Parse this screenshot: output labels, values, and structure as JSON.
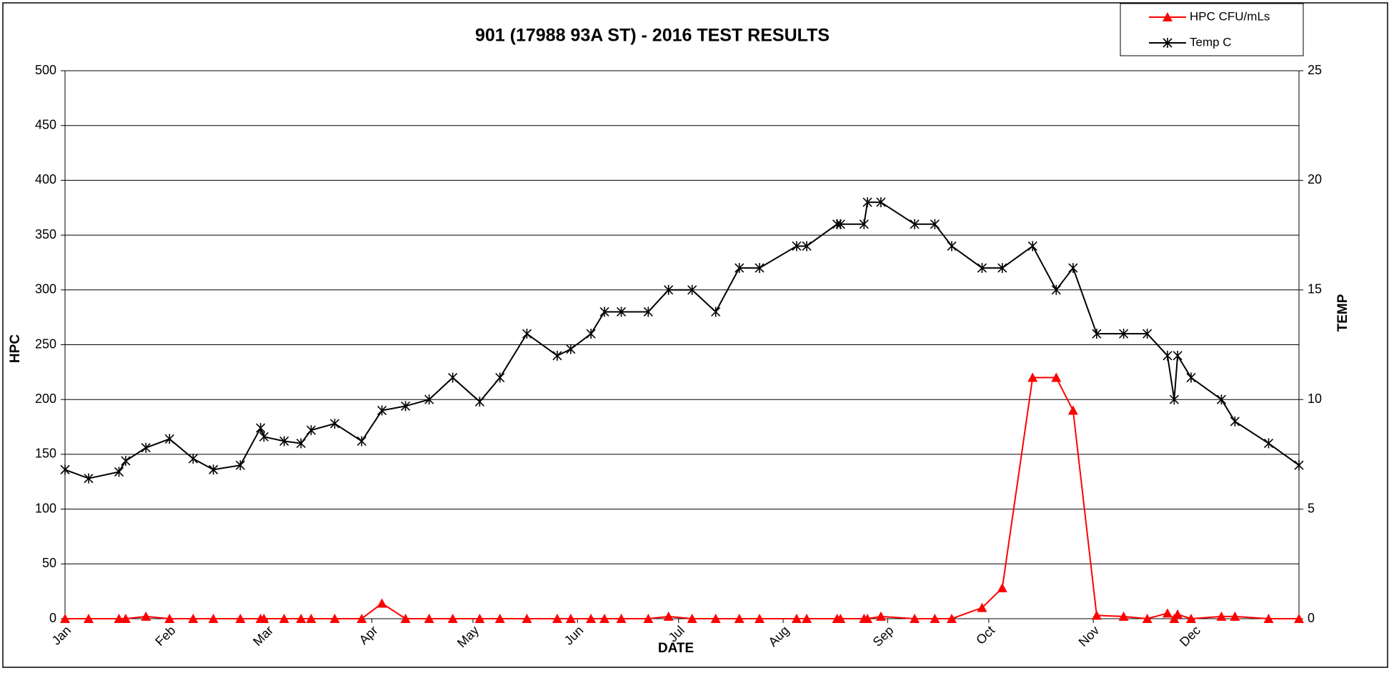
{
  "chart_data": {
    "type": "line",
    "title": "901 (17988 93A ST) - 2016 TEST RESULTS",
    "xlabel": "DATE",
    "ylabel": "HPC",
    "y2label": "TEMP",
    "x": [
      0,
      7,
      16,
      18,
      24,
      31,
      38,
      44,
      52,
      58,
      59,
      65,
      70,
      73,
      80,
      88,
      94,
      101,
      108,
      115,
      123,
      129,
      137,
      146,
      150,
      156,
      160,
      165,
      173,
      179,
      186,
      193,
      200,
      206,
      217,
      220,
      229,
      230,
      237,
      238,
      242,
      252,
      258,
      263,
      272,
      278,
      287,
      294,
      299,
      306,
      314,
      321,
      327,
      329,
      330,
      334,
      343,
      347,
      357,
      366
    ],
    "xlim": [
      0,
      366
    ],
    "xticks": [
      {
        "value": 0,
        "label": "Jan"
      },
      {
        "value": 31,
        "label": "Feb"
      },
      {
        "value": 60,
        "label": "Mar"
      },
      {
        "value": 91,
        "label": "Apr"
      },
      {
        "value": 121,
        "label": "May"
      },
      {
        "value": 152,
        "label": "Jun"
      },
      {
        "value": 182,
        "label": "Jul"
      },
      {
        "value": 213,
        "label": "Aug"
      },
      {
        "value": 244,
        "label": "Sep"
      },
      {
        "value": 274,
        "label": "Oct"
      },
      {
        "value": 305,
        "label": "Nov"
      },
      {
        "value": 335,
        "label": "Dec"
      }
    ],
    "ylim": [
      0,
      500
    ],
    "yticks": [
      0,
      50,
      100,
      150,
      200,
      250,
      300,
      350,
      400,
      450,
      500
    ],
    "y2lim": [
      0,
      25
    ],
    "y2ticks": [
      0,
      5,
      10,
      15,
      20,
      25
    ],
    "grid": true,
    "legend": "top-right",
    "series": [
      {
        "name": "HPC CFU/mLs",
        "color": "#ff0000",
        "marker": "triangle",
        "values": [
          0,
          0,
          0,
          0,
          2,
          0,
          0,
          0,
          0,
          0,
          0,
          0,
          0,
          0,
          0,
          0,
          14,
          0,
          0,
          0,
          0,
          0,
          0,
          0,
          0,
          0,
          0,
          0,
          0,
          2,
          0,
          0,
          0,
          0,
          0,
          0,
          0,
          0,
          0,
          0,
          2,
          0,
          0,
          0,
          10,
          28,
          220,
          220,
          190,
          3,
          2,
          0,
          5,
          0,
          4,
          0,
          2,
          2,
          0,
          0
        ]
      },
      {
        "name": "Temp C",
        "color": "#000000",
        "marker": "asterisk",
        "axis": "y2",
        "values": [
          6.8,
          6.4,
          6.7,
          7.2,
          7.8,
          8.2,
          7.3,
          6.8,
          7,
          8.7,
          8.3,
          8.1,
          8,
          8.6,
          8.9,
          8.1,
          9.5,
          9.7,
          10,
          11,
          9.9,
          11,
          13,
          12,
          12.3,
          13,
          14,
          14,
          14,
          15,
          15,
          14,
          16,
          16,
          17,
          17,
          18,
          18,
          18,
          19,
          19,
          18,
          18,
          17,
          16,
          16,
          17,
          15,
          16,
          13,
          13,
          13,
          12,
          10,
          12,
          11,
          10,
          9,
          8,
          7
        ]
      }
    ]
  }
}
